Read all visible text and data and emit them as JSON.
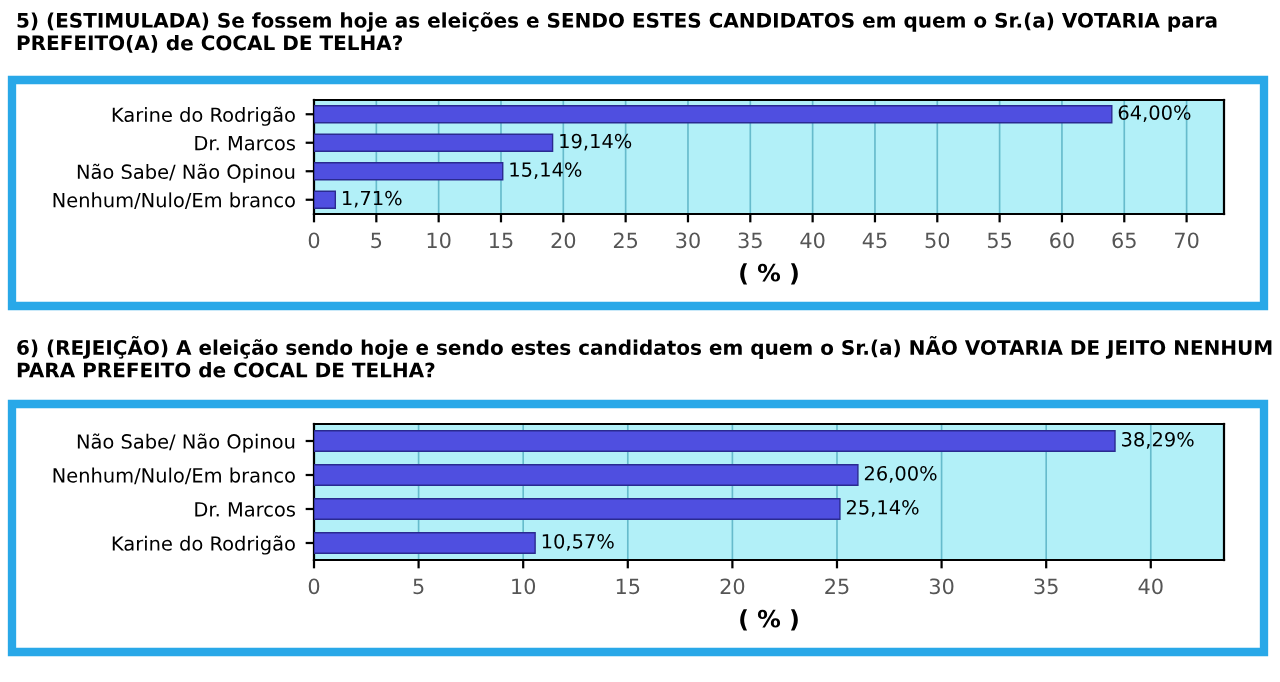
{
  "chart_data": [
    {
      "type": "bar",
      "orientation": "horizontal",
      "title": "5) (ESTIMULADA) Se fossem hoje as eleições e SENDO ESTES CANDIDATOS em quem o Sr.(a) VOTARIA para PREFEITO(A) de COCAL DE TELHA?",
      "xlabel": "( % )",
      "categories": [
        "Karine do Rodrigão",
        "Dr. Marcos",
        "Não Sabe/ Não Opinou",
        "Nenhum/Nulo/Em branco"
      ],
      "values": [
        64.0,
        19.14,
        15.14,
        1.71
      ],
      "value_labels": [
        "64,00%",
        "19,14%",
        "15,14%",
        "1,71%"
      ],
      "color": "#4f4fe0",
      "xlim": [
        0,
        73
      ],
      "xticks": [
        0,
        5,
        10,
        15,
        20,
        25,
        30,
        35,
        40,
        45,
        50,
        55,
        60,
        65,
        70
      ],
      "grid": "x"
    },
    {
      "type": "bar",
      "orientation": "horizontal",
      "title": "6) (REJEIÇÃO) A eleição sendo hoje e sendo estes candidatos em quem o Sr.(a) NÃO VOTARIA DE JEITO NENHUM PARA PREFEITO de COCAL DE TELHA?",
      "xlabel": "( % )",
      "categories": [
        "Não Sabe/ Não Opinou",
        "Nenhum/Nulo/Em branco",
        "Dr. Marcos",
        "Karine do Rodrigão"
      ],
      "values": [
        38.29,
        26.0,
        25.14,
        10.57
      ],
      "value_labels": [
        "38,29%",
        "26,00%",
        "25,14%",
        "10,57%"
      ],
      "color": "#4f4fe0",
      "xlim": [
        0,
        43.5
      ],
      "xticks": [
        0,
        5,
        10,
        15,
        20,
        25,
        30,
        35,
        40
      ],
      "grid": "x"
    }
  ]
}
